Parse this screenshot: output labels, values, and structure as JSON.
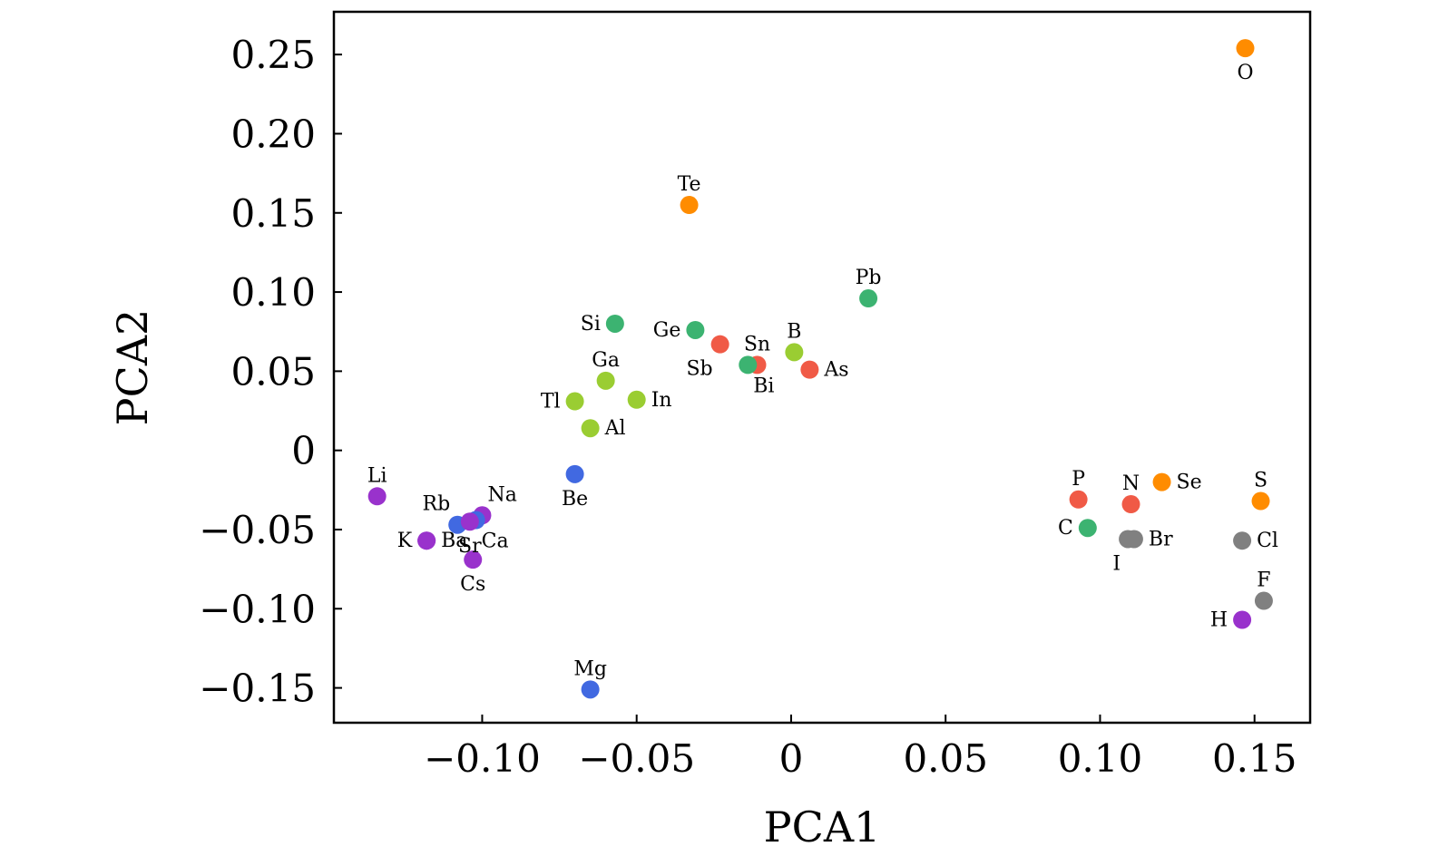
{
  "chart_data": {
    "type": "scatter",
    "title": "",
    "xlabel": "PCA1",
    "ylabel": "PCA2",
    "xlim": [
      -0.148,
      0.168
    ],
    "ylim": [
      -0.172,
      0.277
    ],
    "xticks": [
      -0.1,
      -0.05,
      0,
      0.05,
      0.1,
      0.15
    ],
    "xtick_labels": [
      "−0.10",
      "−0.05",
      "0",
      "0.05",
      "0.10",
      "0.15"
    ],
    "yticks": [
      -0.15,
      -0.1,
      -0.05,
      0,
      0.05,
      0.1,
      0.15,
      0.2,
      0.25
    ],
    "ytick_labels": [
      "−0.15",
      "−0.10",
      "−0.05",
      "0",
      "0.05",
      "0.10",
      "0.15",
      "0.20",
      "0.25"
    ],
    "grid": false,
    "legend": false,
    "colors": {
      "orange": "#ff8c00",
      "green": "#3cb371",
      "red": "#f05a46",
      "yellowgreen": "#9acd32",
      "blue": "#4169e1",
      "purple": "#9932cc",
      "gray": "#808080"
    },
    "points": [
      {
        "label": "O",
        "x": 0.147,
        "y": 0.254,
        "color": "orange",
        "pos": "below"
      },
      {
        "label": "Te",
        "x": -0.033,
        "y": 0.155,
        "color": "orange",
        "pos": "above"
      },
      {
        "label": "Pb",
        "x": 0.025,
        "y": 0.096,
        "color": "green",
        "pos": "above"
      },
      {
        "label": "Si",
        "x": -0.057,
        "y": 0.08,
        "color": "green",
        "pos": "left"
      },
      {
        "label": "Ge",
        "x": -0.031,
        "y": 0.076,
        "color": "green",
        "pos": "left"
      },
      {
        "label": "Sb",
        "x": -0.023,
        "y": 0.067,
        "color": "red",
        "pos": "belowleft"
      },
      {
        "label": "Sn",
        "x": -0.011,
        "y": 0.054,
        "color": "red",
        "pos": "above"
      },
      {
        "label": "Bi",
        "x": -0.014,
        "y": 0.054,
        "color": "green",
        "pos": "belowright"
      },
      {
        "label": "B",
        "x": 0.001,
        "y": 0.062,
        "color": "yellowgreen",
        "pos": "above"
      },
      {
        "label": "As",
        "x": 0.006,
        "y": 0.051,
        "color": "red",
        "pos": "right"
      },
      {
        "label": "Ga",
        "x": -0.06,
        "y": 0.044,
        "color": "yellowgreen",
        "pos": "above"
      },
      {
        "label": "Tl",
        "x": -0.07,
        "y": 0.031,
        "color": "yellowgreen",
        "pos": "left"
      },
      {
        "label": "In",
        "x": -0.05,
        "y": 0.032,
        "color": "yellowgreen",
        "pos": "right"
      },
      {
        "label": "Al",
        "x": -0.065,
        "y": 0.014,
        "color": "yellowgreen",
        "pos": "right"
      },
      {
        "label": "Be",
        "x": -0.07,
        "y": -0.015,
        "color": "blue",
        "pos": "below"
      },
      {
        "label": "Li",
        "x": -0.134,
        "y": -0.029,
        "color": "purple",
        "pos": "above"
      },
      {
        "label": "Rb",
        "x": -0.108,
        "y": -0.047,
        "color": "blue",
        "pos": "aboveleft"
      },
      {
        "label": "Na",
        "x": -0.1,
        "y": -0.041,
        "color": "purple",
        "pos": "aboveright"
      },
      {
        "label": "Ca",
        "x": -0.102,
        "y": -0.044,
        "color": "blue",
        "pos": "belowright"
      },
      {
        "label": "Sr",
        "x": -0.104,
        "y": -0.045,
        "color": "purple",
        "pos": "below"
      },
      {
        "label": "Ba",
        "x": -0.118,
        "y": -0.057,
        "color": "purple",
        "pos": "right"
      },
      {
        "label": "K",
        "x": -0.118,
        "y": -0.057,
        "color": "purple",
        "pos": "left"
      },
      {
        "label": "Cs",
        "x": -0.103,
        "y": -0.069,
        "color": "purple",
        "pos": "below"
      },
      {
        "label": "Mg",
        "x": -0.065,
        "y": -0.151,
        "color": "blue",
        "pos": "above"
      },
      {
        "label": "P",
        "x": 0.093,
        "y": -0.031,
        "color": "red",
        "pos": "above"
      },
      {
        "label": "N",
        "x": 0.11,
        "y": -0.034,
        "color": "red",
        "pos": "above"
      },
      {
        "label": "Se",
        "x": 0.12,
        "y": -0.02,
        "color": "orange",
        "pos": "right"
      },
      {
        "label": "S",
        "x": 0.152,
        "y": -0.032,
        "color": "orange",
        "pos": "above"
      },
      {
        "label": "C",
        "x": 0.096,
        "y": -0.049,
        "color": "green",
        "pos": "left"
      },
      {
        "label": "I",
        "x": 0.109,
        "y": -0.056,
        "color": "gray",
        "pos": "belowleft"
      },
      {
        "label": "Br",
        "x": 0.111,
        "y": -0.056,
        "color": "gray",
        "pos": "right"
      },
      {
        "label": "Cl",
        "x": 0.146,
        "y": -0.057,
        "color": "gray",
        "pos": "right"
      },
      {
        "label": "F",
        "x": 0.153,
        "y": -0.095,
        "color": "gray",
        "pos": "above"
      },
      {
        "label": "H",
        "x": 0.146,
        "y": -0.107,
        "color": "purple",
        "pos": "left"
      }
    ]
  }
}
